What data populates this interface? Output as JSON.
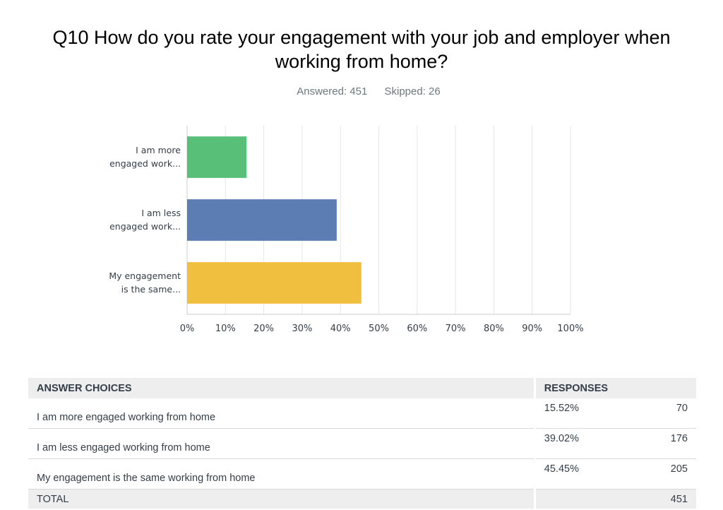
{
  "question": {
    "title": "Q10 How do you rate your engagement with your job and employer when working from home?",
    "answered": "Answered: 451",
    "skipped": "Skipped: 26"
  },
  "chart_data": {
    "type": "bar",
    "orientation": "horizontal",
    "categories": [
      [
        "I am more",
        "engaged work..."
      ],
      [
        "I am less",
        "engaged work..."
      ],
      [
        "My engagement",
        "is the same..."
      ]
    ],
    "values": [
      15.52,
      39.02,
      45.45
    ],
    "colors": [
      "#57bf78",
      "#5b7db3",
      "#f0bf40"
    ],
    "xlim": [
      0,
      100
    ],
    "ticks": [
      "0%",
      "10%",
      "20%",
      "30%",
      "40%",
      "50%",
      "60%",
      "70%",
      "80%",
      "90%",
      "100%"
    ],
    "grid": true,
    "grid_color": "#e6e6e6"
  },
  "table": {
    "headers": {
      "choices": "ANSWER CHOICES",
      "responses": "RESPONSES"
    },
    "rows": [
      {
        "choice": "I am more engaged working from home",
        "percent": "15.52%",
        "count": "70"
      },
      {
        "choice": "I am less engaged working from home",
        "percent": "39.02%",
        "count": "176"
      },
      {
        "choice": "My engagement is the same working from home",
        "percent": "45.45%",
        "count": "205"
      }
    ],
    "total_label": "TOTAL",
    "total_count": "451"
  }
}
